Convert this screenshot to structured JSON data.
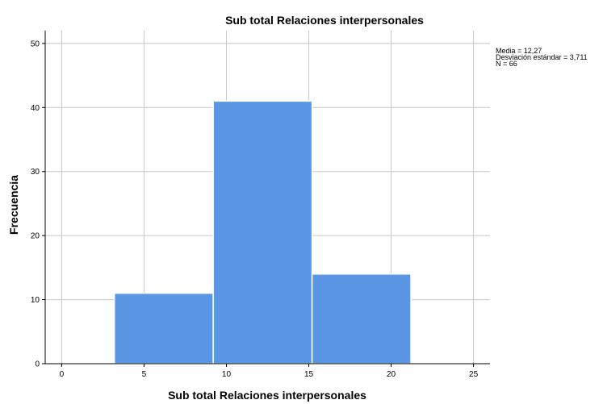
{
  "chart_data": {
    "type": "bar",
    "title": "Sub total Relaciones interpersonales",
    "xlabel": "Sub total Relaciones interpersonales",
    "ylabel": "Frecuencia",
    "xlim": [
      -1,
      26
    ],
    "ylim": [
      0,
      52
    ],
    "x_ticks": [
      0,
      5,
      10,
      15,
      20,
      25
    ],
    "y_ticks": [
      0,
      10,
      20,
      30,
      40,
      50
    ],
    "grid": true,
    "bins": [
      {
        "start": 3.2,
        "end": 9.2,
        "value": 11
      },
      {
        "start": 9.2,
        "end": 15.2,
        "value": 41
      },
      {
        "start": 15.2,
        "end": 21.2,
        "value": 14
      }
    ],
    "bar_color": "#5a96e3",
    "stats": [
      "Media = 12,27",
      "Desviación estándar = 3,711",
      "N = 66"
    ]
  }
}
